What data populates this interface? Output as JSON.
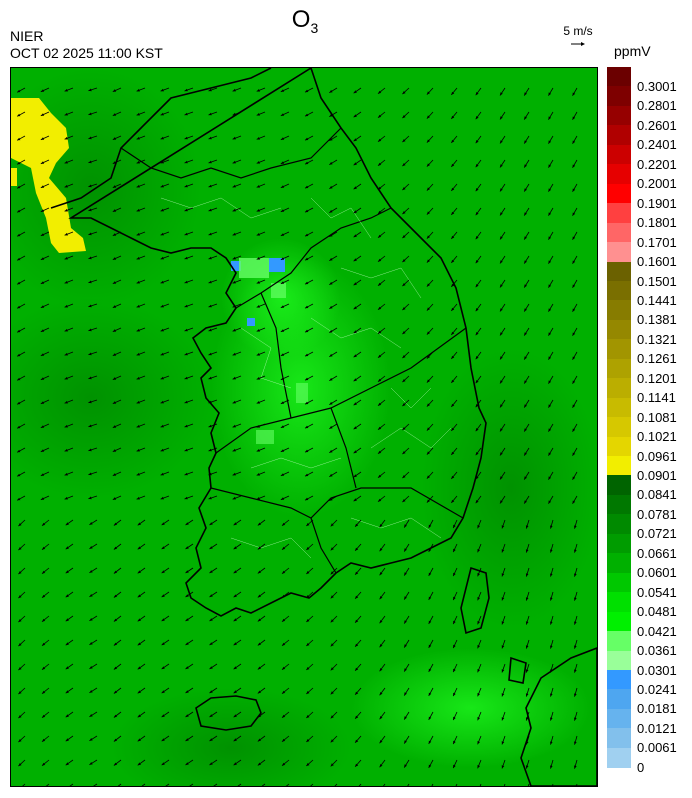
{
  "header": {
    "title_main": "O",
    "title_sub": "3",
    "organization": "NIER",
    "datetime": "OCT 02 2025 11:00 KST",
    "wind_reference": "5 m/s",
    "unit": "ppmV"
  },
  "colorbar": {
    "labels": [
      "0.3001",
      "0.2801",
      "0.2601",
      "0.2401",
      "0.2201",
      "0.2001",
      "0.1901",
      "0.1801",
      "0.1701",
      "0.1601",
      "0.1501",
      "0.1441",
      "0.1381",
      "0.1321",
      "0.1261",
      "0.1201",
      "0.1141",
      "0.1081",
      "0.1021",
      "0.0961",
      "0.0901",
      "0.0841",
      "0.0781",
      "0.0721",
      "0.0661",
      "0.0601",
      "0.0541",
      "0.0481",
      "0.0421",
      "0.0361",
      "0.0301",
      "0.0241",
      "0.0181",
      "0.0121",
      "0.0061",
      "0"
    ],
    "colors": [
      "#6b0000",
      "#7e0000",
      "#960000",
      "#b00000",
      "#cc0000",
      "#e60000",
      "#ff0000",
      "#ff4040",
      "#ff6666",
      "#ff9090",
      "#6b6100",
      "#7a6f00",
      "#877c00",
      "#958800",
      "#a29500",
      "#aea200",
      "#bbae00",
      "#c8bb00",
      "#d6c800",
      "#e4d600",
      "#f2ee00",
      "#006400",
      "#007800",
      "#008a00",
      "#009c00",
      "#00b000",
      "#00c800",
      "#00e000",
      "#00f000",
      "#66ff66",
      "#99ff99",
      "#3399ff",
      "#4ea6f0",
      "#66b3ee",
      "#82c0ec",
      "#a0d0f0"
    ]
  },
  "map": {
    "base_color": "#00b000",
    "wind_color": "#000000",
    "border_color": "#000000",
    "hotspots": [
      {
        "name": "northwest-yellow",
        "color": "#f2ee00"
      },
      {
        "name": "seoul-blue",
        "color": "#3399ff"
      }
    ]
  }
}
